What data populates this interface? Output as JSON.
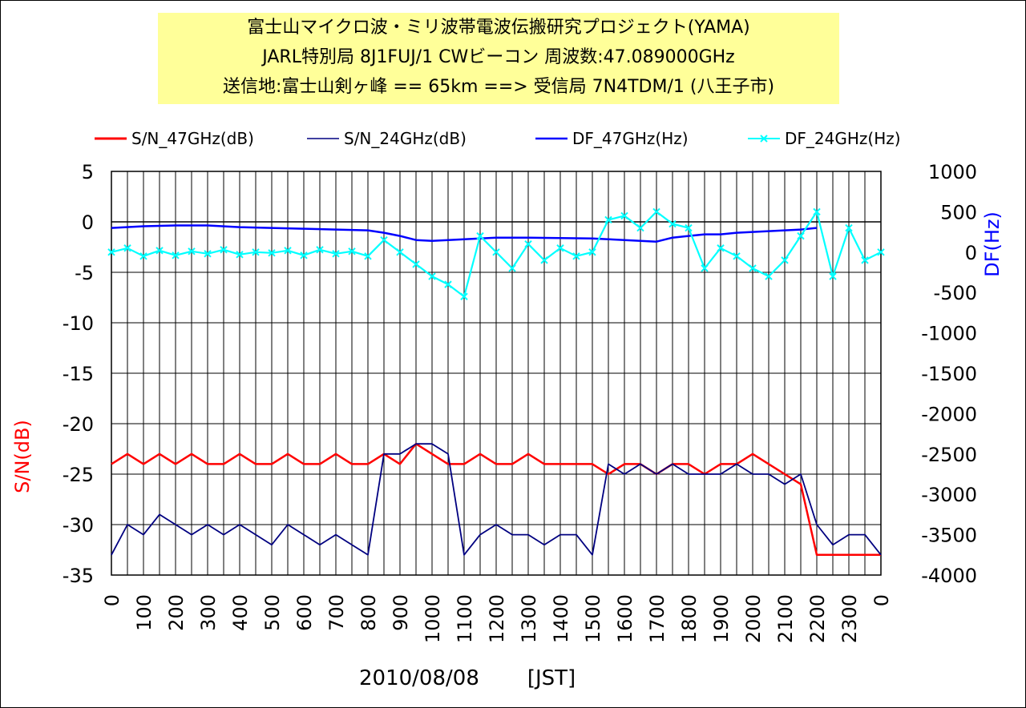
{
  "title": {
    "line1": "富士山マイクロ波・ミリ波帯電波伝搬研究プロジェクト(YAMA)",
    "line2": "JARL特別局 8J1FUJ/1 CWビーコン 周波数:47.089000GHz",
    "line3": "送信地:富士山剣ヶ峰  == 65km ==> 受信局 7N4TDM/1 (八王子市)"
  },
  "footer": {
    "date": "2010/08/08",
    "tz": "[JST]"
  },
  "colors": {
    "sn47": "#ff0000",
    "sn24": "#000080",
    "df47": "#0000ff",
    "df24": "#00ffff",
    "grid": "#000000"
  },
  "chart_data": {
    "type": "line",
    "ylabel": "S/N(dB)",
    "y2label": "DF(Hz)",
    "ylim": [
      -35,
      5
    ],
    "y2lim": [
      -4000,
      1000
    ],
    "y_ticks": [
      "5",
      "0",
      "-5",
      "-10",
      "-15",
      "-20",
      "-25",
      "-30",
      "-35"
    ],
    "y2_ticks": [
      "1000",
      "500",
      "0",
      "-500",
      "-1000",
      "-1500",
      "-2000",
      "-2500",
      "-3000",
      "-3500",
      "-4000"
    ],
    "x_ticks": [
      "0",
      "100",
      "200",
      "300",
      "400",
      "500",
      "600",
      "700",
      "800",
      "900",
      "1000",
      "1100",
      "1200",
      "1300",
      "1400",
      "1500",
      "1600",
      "1700",
      "1800",
      "1900",
      "2000",
      "2100",
      "2200",
      "2300",
      "0"
    ],
    "grid": true,
    "legend_position": "top",
    "series": [
      {
        "name": "S/N_47GHz(dB)",
        "axis": "left",
        "x": [
          0,
          50,
          100,
          150,
          200,
          250,
          300,
          350,
          400,
          450,
          500,
          550,
          600,
          650,
          700,
          750,
          800,
          850,
          900,
          950,
          1000,
          1050,
          1100,
          1150,
          1200,
          1250,
          1300,
          1350,
          1400,
          1450,
          1500,
          1550,
          1600,
          1650,
          1700,
          1750,
          1800,
          1850,
          1900,
          1950,
          2000,
          2050,
          2100,
          2150,
          2200,
          2250,
          2300,
          2350,
          2400
        ],
        "values": [
          -24,
          -23,
          -24,
          -23,
          -24,
          -23,
          -24,
          -24,
          -23,
          -24,
          -24,
          -23,
          -24,
          -24,
          -23,
          -24,
          -24,
          -23,
          -24,
          -22,
          -23,
          -24,
          -24,
          -23,
          -24,
          -24,
          -23,
          -24,
          -24,
          -24,
          -24,
          -25,
          -24,
          -24,
          -25,
          -24,
          -24,
          -25,
          -24,
          -24,
          -23,
          -24,
          -25,
          -26,
          -33,
          -33,
          -33,
          -33,
          -33
        ]
      },
      {
        "name": "S/N_24GHz(dB)",
        "axis": "left",
        "x": [
          0,
          50,
          100,
          150,
          200,
          250,
          300,
          350,
          400,
          450,
          500,
          550,
          600,
          650,
          700,
          750,
          800,
          850,
          900,
          950,
          1000,
          1050,
          1100,
          1150,
          1200,
          1250,
          1300,
          1350,
          1400,
          1450,
          1500,
          1550,
          1600,
          1650,
          1700,
          1750,
          1800,
          1850,
          1900,
          1950,
          2000,
          2050,
          2100,
          2150,
          2200,
          2250,
          2300,
          2350,
          2400
        ],
        "values": [
          -33,
          -30,
          -31,
          -29,
          -30,
          -31,
          -30,
          -31,
          -30,
          -31,
          -32,
          -30,
          -31,
          -32,
          -31,
          -32,
          -33,
          -23,
          -23,
          -22,
          -22,
          -23,
          -33,
          -31,
          -30,
          -31,
          -31,
          -32,
          -31,
          -31,
          -33,
          -24,
          -25,
          -24,
          -25,
          -24,
          -25,
          -25,
          -25,
          -24,
          -25,
          -25,
          -26,
          -25,
          -30,
          -32,
          -31,
          -31,
          -33
        ]
      },
      {
        "name": "DF_47GHz(Hz)",
        "axis": "right",
        "x": [
          0,
          100,
          200,
          300,
          400,
          500,
          600,
          700,
          800,
          850,
          900,
          950,
          1000,
          1050,
          1100,
          1150,
          1200,
          1300,
          1400,
          1500,
          1550,
          1600,
          1650,
          1700,
          1750,
          1800,
          1850,
          1900,
          1950,
          2000,
          2050,
          2100,
          2150,
          2200
        ],
        "values": [
          300,
          320,
          330,
          330,
          310,
          300,
          290,
          280,
          270,
          240,
          200,
          150,
          140,
          150,
          160,
          170,
          180,
          180,
          175,
          170,
          160,
          150,
          140,
          130,
          180,
          200,
          220,
          220,
          240,
          250,
          260,
          270,
          280,
          300
        ]
      },
      {
        "name": "DF_24GHz(Hz)",
        "axis": "right",
        "x": [
          0,
          50,
          100,
          150,
          200,
          250,
          300,
          350,
          400,
          450,
          500,
          550,
          600,
          650,
          700,
          750,
          800,
          850,
          900,
          950,
          1000,
          1050,
          1100,
          1150,
          1200,
          1250,
          1300,
          1350,
          1400,
          1450,
          1500,
          1550,
          1600,
          1650,
          1700,
          1750,
          1800,
          1850,
          1900,
          1950,
          2000,
          2050,
          2100,
          2150,
          2200,
          2250,
          2300,
          2350,
          2400
        ],
        "values": [
          0,
          50,
          -50,
          20,
          -40,
          10,
          -20,
          30,
          -30,
          0,
          -10,
          20,
          -40,
          30,
          -20,
          10,
          -50,
          150,
          0,
          -150,
          -300,
          -400,
          -550,
          200,
          0,
          -200,
          100,
          -100,
          50,
          -50,
          0,
          400,
          450,
          300,
          500,
          350,
          300,
          -200,
          50,
          -50,
          -200,
          -300,
          -100,
          200,
          500,
          -300,
          300,
          -100,
          0
        ]
      }
    ]
  }
}
